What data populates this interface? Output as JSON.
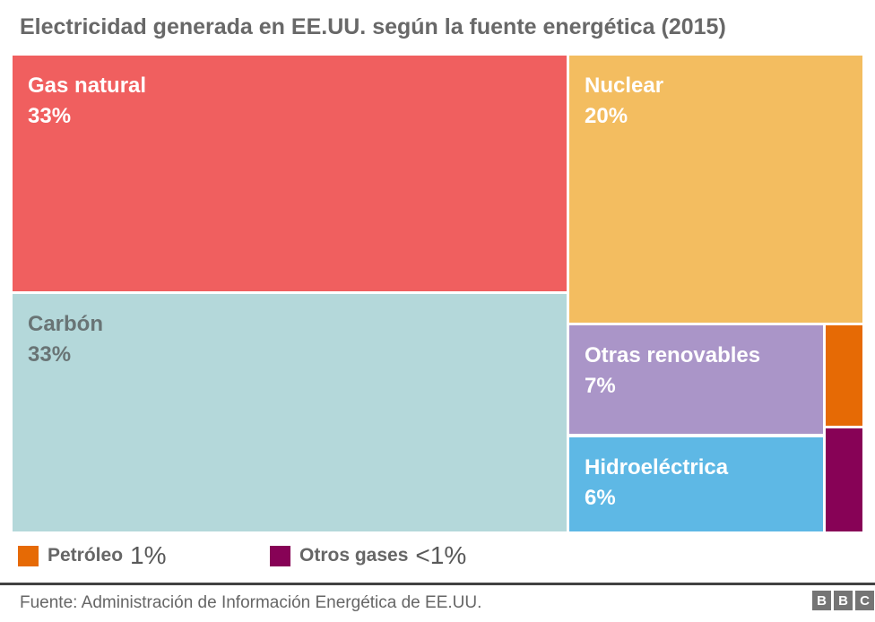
{
  "title": "Electricidad generada en EE.UU. según la fuente energética (2015)",
  "chart_data": {
    "type": "treemap",
    "title": "Electricidad generada en EE.UU. según la fuente energética (2015)",
    "unit": "%",
    "blocks": [
      {
        "label": "Gas natural",
        "value": 33,
        "value_label": "33%",
        "color": "#f05f5f",
        "text_color": "#ffffff"
      },
      {
        "label": "Carbón",
        "value": 33,
        "value_label": "33%",
        "color": "#b4d8da",
        "text_color": "#697475"
      },
      {
        "label": "Nuclear",
        "value": 20,
        "value_label": "20%",
        "color": "#f3bd60",
        "text_color": "#ffffff"
      },
      {
        "label": "Otras renovables",
        "value": 7,
        "value_label": "7%",
        "color": "#aa95c8",
        "text_color": "#ffffff"
      },
      {
        "label": "Hidroeléctrica",
        "value": 6,
        "value_label": "6%",
        "color": "#5eb8e5",
        "text_color": "#ffffff"
      },
      {
        "label": "Petróleo",
        "value": 1,
        "value_label": "1%",
        "color": "#e66a05",
        "text_color": null
      },
      {
        "label": "Otros gases",
        "value": 0.5,
        "value_label": "<1%",
        "color": "#870256",
        "text_color": null
      }
    ],
    "legend_position": "bottom"
  },
  "footer": {
    "source": "Fuente: Administración de Información Energética de EE.UU.",
    "logo": [
      "B",
      "B",
      "C"
    ]
  }
}
